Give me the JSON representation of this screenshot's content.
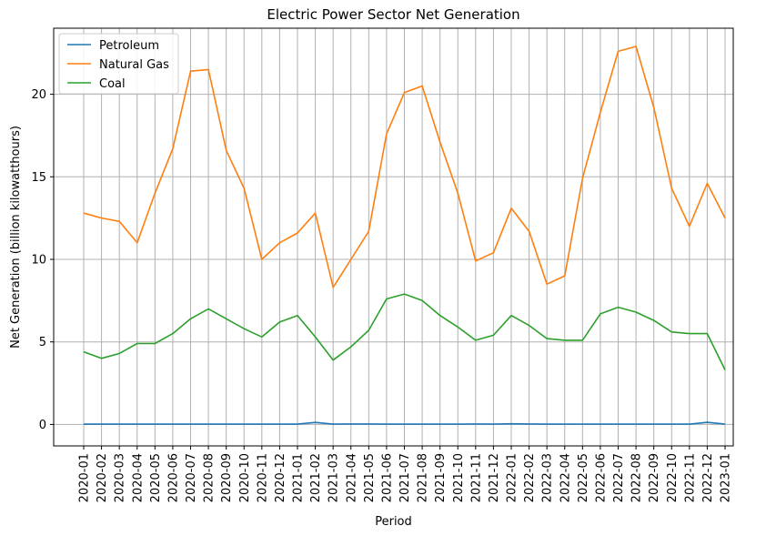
{
  "chart_data": {
    "type": "line",
    "title": "Electric Power Sector Net Generation",
    "xlabel": "Period",
    "ylabel": "Net Generation (billion kilowatthours)",
    "ylim": [
      -1.3,
      24.0
    ],
    "yticks": [
      0,
      5,
      10,
      15,
      20
    ],
    "grid": true,
    "legend_position": "top-left",
    "x": [
      "2020-01",
      "2020-02",
      "2020-03",
      "2020-04",
      "2020-05",
      "2020-06",
      "2020-07",
      "2020-08",
      "2020-09",
      "2020-10",
      "2020-11",
      "2020-12",
      "2021-01",
      "2021-02",
      "2021-03",
      "2021-04",
      "2021-05",
      "2021-06",
      "2021-07",
      "2021-08",
      "2021-09",
      "2021-10",
      "2021-11",
      "2021-12",
      "2022-01",
      "2022-02",
      "2022-03",
      "2022-04",
      "2022-05",
      "2022-06",
      "2022-07",
      "2022-08",
      "2022-09",
      "2022-10",
      "2022-11",
      "2022-12",
      "2023-01"
    ],
    "series": [
      {
        "name": "Petroleum",
        "color": "#1f77b4",
        "values": [
          0.02,
          0.02,
          0.02,
          0.02,
          0.02,
          0.02,
          0.02,
          0.02,
          0.02,
          0.02,
          0.02,
          0.02,
          0.02,
          0.12,
          0.02,
          0.03,
          0.03,
          0.02,
          0.02,
          0.02,
          0.02,
          0.02,
          0.03,
          0.02,
          0.04,
          0.03,
          0.02,
          0.02,
          0.02,
          0.02,
          0.02,
          0.02,
          0.02,
          0.02,
          0.02,
          0.13,
          0.02
        ]
      },
      {
        "name": "Natural Gas",
        "color": "#ff7f0e",
        "values": [
          12.8,
          12.5,
          12.3,
          11.0,
          14.0,
          16.7,
          21.4,
          21.5,
          16.6,
          14.3,
          10.0,
          11.0,
          11.6,
          12.8,
          8.3,
          10.0,
          11.7,
          17.6,
          20.1,
          20.5,
          17.1,
          14.0,
          9.9,
          10.4,
          13.1,
          11.7,
          8.5,
          9.0,
          14.9,
          18.9,
          22.6,
          22.9,
          19.2,
          14.3,
          12.0,
          14.6,
          12.5
        ]
      },
      {
        "name": "Coal",
        "color": "#2ca02c",
        "values": [
          4.4,
          4.0,
          4.3,
          4.9,
          4.9,
          5.5,
          6.4,
          7.0,
          6.4,
          5.8,
          5.3,
          6.2,
          6.6,
          5.3,
          3.9,
          4.7,
          5.7,
          7.6,
          7.9,
          7.5,
          6.6,
          5.9,
          5.1,
          5.4,
          6.6,
          6.0,
          5.2,
          5.1,
          5.1,
          6.7,
          7.1,
          6.8,
          6.3,
          5.6,
          5.5,
          5.5,
          3.3
        ]
      }
    ]
  }
}
